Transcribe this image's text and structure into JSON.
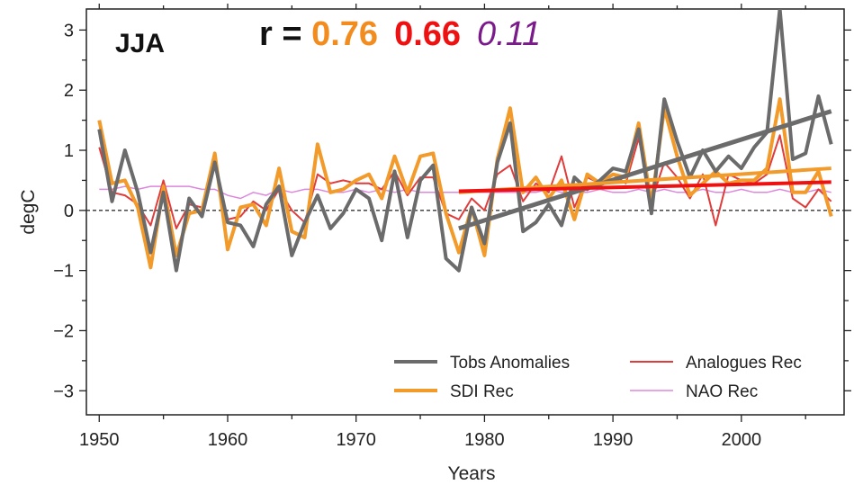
{
  "chart_data": {
    "type": "line",
    "season_label": "JJA",
    "r_prefix": "r = ",
    "r_values": [
      {
        "text": "0.76",
        "color": "#f28c1e",
        "italic": false,
        "bold": true
      },
      {
        "text": "0.66",
        "color": "#ee1111",
        "italic": false,
        "bold": true
      },
      {
        "text": "0.11",
        "color": "#7b1a8a",
        "italic": true,
        "bold": false
      }
    ],
    "xlabel": "Years",
    "ylabel": "degC",
    "xlim": [
      1949,
      2008
    ],
    "ylim": [
      -3.4,
      3.35
    ],
    "xticks": [
      1950,
      1960,
      1970,
      1980,
      1990,
      2000
    ],
    "yticks": [
      3,
      2,
      1,
      0,
      -1,
      -2,
      -3
    ],
    "ytick_labels": [
      "3",
      "2",
      "1",
      "0",
      "−1",
      "−2",
      "−3"
    ],
    "zero_line": "dashed",
    "legend_position": "bottom-right",
    "x": [
      1950,
      1951,
      1952,
      1953,
      1954,
      1955,
      1956,
      1957,
      1958,
      1959,
      1960,
      1961,
      1962,
      1963,
      1964,
      1965,
      1966,
      1967,
      1968,
      1969,
      1970,
      1971,
      1972,
      1973,
      1974,
      1975,
      1976,
      1977,
      1978,
      1979,
      1980,
      1981,
      1982,
      1983,
      1984,
      1985,
      1986,
      1987,
      1988,
      1989,
      1990,
      1991,
      1992,
      1993,
      1994,
      1995,
      1996,
      1997,
      1998,
      1999,
      2000,
      2001,
      2002,
      2003,
      2004,
      2005,
      2006,
      2007
    ],
    "series": [
      {
        "name": "Tobs Anomalies",
        "color": "#6b6b6b",
        "width": 4,
        "values": [
          1.35,
          0.15,
          1.0,
          0.3,
          -0.7,
          0.3,
          -1.0,
          0.2,
          -0.1,
          0.8,
          -0.2,
          -0.25,
          -0.6,
          0.1,
          0.4,
          -0.75,
          -0.2,
          0.25,
          -0.3,
          -0.05,
          0.35,
          0.2,
          -0.5,
          0.65,
          -0.45,
          0.5,
          0.75,
          -0.8,
          -1.0,
          0.05,
          -0.55,
          0.8,
          1.45,
          -0.35,
          -0.2,
          0.1,
          -0.25,
          0.55,
          0.35,
          0.5,
          0.7,
          0.65,
          1.35,
          -0.05,
          1.85,
          1.15,
          0.55,
          1.0,
          0.65,
          0.9,
          0.7,
          1.05,
          1.3,
          3.35,
          0.85,
          0.95,
          1.9,
          1.1
        ]
      },
      {
        "name": "SDI Rec",
        "color": "#f29a2a",
        "width": 4,
        "values": [
          1.5,
          0.45,
          0.5,
          0.05,
          -0.95,
          0.4,
          -0.75,
          -0.05,
          0.0,
          0.95,
          -0.65,
          0.05,
          0.1,
          -0.25,
          0.7,
          -0.35,
          -0.45,
          1.1,
          0.3,
          0.35,
          0.5,
          0.6,
          0.2,
          0.9,
          0.3,
          0.9,
          0.95,
          -0.05,
          -0.7,
          0.05,
          -0.75,
          0.85,
          1.7,
          0.3,
          0.55,
          0.2,
          0.5,
          -0.15,
          0.6,
          0.45,
          0.6,
          0.55,
          1.45,
          0.1,
          1.7,
          0.9,
          0.25,
          0.45,
          0.65,
          0.45,
          0.5,
          0.5,
          0.7,
          1.85,
          0.3,
          0.3,
          0.65,
          -0.1
        ]
      },
      {
        "name": "Analogues Rec",
        "color": "#e03c3c",
        "width": 2,
        "values": [
          1.05,
          0.3,
          0.25,
          0.1,
          -0.25,
          0.5,
          -0.3,
          0.1,
          0.05,
          0.8,
          -0.15,
          -0.1,
          0.15,
          0.0,
          0.35,
          0.0,
          -0.2,
          0.6,
          0.45,
          0.5,
          0.45,
          0.45,
          0.35,
          0.65,
          0.25,
          0.55,
          0.55,
          -0.05,
          -0.15,
          0.2,
          0.0,
          0.6,
          0.75,
          0.15,
          0.45,
          0.3,
          0.9,
          0.05,
          0.55,
          0.45,
          0.6,
          0.45,
          1.2,
          0.15,
          0.8,
          0.55,
          0.2,
          0.6,
          -0.25,
          0.6,
          0.5,
          0.45,
          0.6,
          1.25,
          0.2,
          0.05,
          0.35,
          0.15
        ]
      },
      {
        "name": "NAO Rec",
        "color": "#dd88dd",
        "width": 1.5,
        "values": [
          0.35,
          0.35,
          0.4,
          0.35,
          0.4,
          0.4,
          0.4,
          0.4,
          0.35,
          0.35,
          0.25,
          0.2,
          0.3,
          0.25,
          0.35,
          0.3,
          0.35,
          0.35,
          0.3,
          0.3,
          0.35,
          0.3,
          0.35,
          0.3,
          0.35,
          0.3,
          0.3,
          0.3,
          0.3,
          0.3,
          0.3,
          0.3,
          0.3,
          0.3,
          0.3,
          0.35,
          0.3,
          0.3,
          0.3,
          0.35,
          0.3,
          0.3,
          0.35,
          0.3,
          0.35,
          0.3,
          0.3,
          0.35,
          0.3,
          0.3,
          0.35,
          0.3,
          0.3,
          0.35,
          0.3,
          0.3,
          0.35,
          0.3
        ]
      }
    ],
    "trend_lines": [
      {
        "name": "Tobs Anomalies trend",
        "color": "#6b6b6b",
        "width": 5,
        "x": [
          1978,
          2007
        ],
        "y": [
          -0.3,
          1.65
        ]
      },
      {
        "name": "SDI Rec trend",
        "color": "#f29a2a",
        "width": 4,
        "x": [
          1978,
          2007
        ],
        "y": [
          0.3,
          0.7
        ]
      },
      {
        "name": "Analogues Rec trend",
        "color": "#ee1111",
        "width": 4,
        "x": [
          1978,
          2007
        ],
        "y": [
          0.32,
          0.47
        ]
      }
    ],
    "legend": [
      {
        "label": "Tobs Anomalies",
        "color": "#6b6b6b",
        "width": 4
      },
      {
        "label": "Analogues Rec",
        "color": "#e03c3c",
        "width": 2
      },
      {
        "label": "SDI Rec",
        "color": "#f29a2a",
        "width": 4
      },
      {
        "label": "NAO Rec",
        "color": "#dd88dd",
        "width": 1.5
      }
    ]
  }
}
